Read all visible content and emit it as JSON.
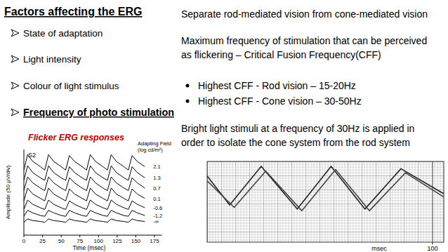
{
  "slide": {
    "title": "Factors affecting the ERG",
    "factors": [
      "State of adaptation",
      "Light intensity",
      "Colour of light stimulus"
    ],
    "current_factor": "Frequency of photo stimulation",
    "right_text": {
      "intro": [
        "Separate rod-mediated vision from cone-mediated vision"
      ],
      "cff": [
        "Maximum frequency of stimulation that can be perceived",
        "as flickering – Critical Fusion Frequency(CFF)"
      ],
      "cff_list": [
        "Highest CFF - Rod vision – 15-20Hz",
        "Highest CFF - Cone vision – 30-50Hz"
      ],
      "conclusion": [
        "Bright light stimuli at a frequency of 30Hz is applied in",
        "order to isolate the cone system from the rod system"
      ]
    }
  },
  "chart_data": [
    {
      "type": "line",
      "title": "Flicker ERG responses",
      "y_label": "Amplitude (50 µV/div)",
      "x_label": "Time (msec)",
      "annotations": [
        "S2"
      ],
      "legend_title": [
        "Adapting Field",
        "(log cd/m²)"
      ],
      "x": [
        0,
        5,
        12,
        22,
        28,
        33,
        40,
        50,
        56,
        61,
        68,
        78,
        84,
        89,
        96,
        106,
        112,
        117,
        124,
        134,
        140,
        145,
        152,
        162
      ],
      "series": [
        {
          "name": "2.1",
          "color": "#000000",
          "values": [
            7.6,
            9.4,
            8.6,
            8.0,
            7.6,
            9.4,
            8.6,
            8.0,
            7.6,
            9.3,
            8.6,
            8.0,
            7.6,
            9.4,
            8.6,
            8.0,
            7.6,
            9.4,
            8.6,
            8.0,
            7.6,
            9.3,
            8.6,
            8.0
          ]
        },
        {
          "name": "1.3",
          "color": "#000000",
          "values": [
            6.4,
            8.1,
            7.3,
            6.7,
            6.4,
            8.1,
            7.3,
            6.7,
            6.4,
            8.0,
            7.3,
            6.7,
            6.4,
            8.1,
            7.3,
            6.7,
            6.4,
            8.1,
            7.3,
            6.7,
            6.4,
            8.0,
            7.3,
            6.7
          ]
        },
        {
          "name": "0.7",
          "color": "#000000",
          "values": [
            5.2,
            6.8,
            6.1,
            5.5,
            5.2,
            6.8,
            6.1,
            5.5,
            5.2,
            6.7,
            6.1,
            5.5,
            5.2,
            6.8,
            6.1,
            5.5,
            5.2,
            6.8,
            6.1,
            5.5,
            5.2,
            6.7,
            6.1,
            5.5
          ]
        },
        {
          "name": "0.1",
          "color": "#000000",
          "values": [
            4.0,
            5.5,
            4.8,
            4.3,
            4.0,
            5.5,
            4.8,
            4.3,
            4.0,
            5.4,
            4.8,
            4.3,
            4.0,
            5.5,
            4.8,
            4.3,
            4.0,
            5.5,
            4.8,
            4.3,
            4.0,
            5.4,
            4.8,
            4.3
          ]
        },
        {
          "name": "-0.6",
          "color": "#000000",
          "values": [
            3.0,
            4.1,
            3.6,
            3.2,
            3.0,
            4.1,
            3.6,
            3.2,
            3.0,
            4.0,
            3.6,
            3.2,
            3.0,
            4.1,
            3.6,
            3.2,
            3.0,
            4.1,
            3.6,
            3.2,
            3.0,
            4.0,
            3.6,
            3.2
          ]
        },
        {
          "name": "-1.2",
          "color": "#000000",
          "values": [
            2.2,
            2.9,
            2.6,
            2.3,
            2.2,
            2.9,
            2.6,
            2.3,
            2.2,
            2.9,
            2.6,
            2.3,
            2.2,
            2.9,
            2.6,
            2.3,
            2.2,
            2.9,
            2.6,
            2.3,
            2.2,
            2.9,
            2.6,
            2.3
          ]
        },
        {
          "name": "-∞",
          "color": "#000000",
          "values": [
            1.5,
            1.9,
            1.7,
            1.6,
            1.5,
            1.9,
            1.7,
            1.6,
            1.5,
            1.9,
            1.7,
            1.6,
            1.5,
            1.9,
            1.7,
            1.6,
            1.5,
            1.9,
            1.7,
            1.6,
            1.5,
            1.9,
            1.7,
            1.6
          ]
        }
      ],
      "xlim": [
        0,
        185
      ],
      "xticks": [
        0,
        25,
        50,
        75,
        100,
        125,
        150,
        175
      ],
      "ylim": [
        0,
        10
      ],
      "tick_labels": "x",
      "grid": false
    },
    {
      "type": "line",
      "x_label": "msec",
      "series": [
        {
          "color": "#222222",
          "x": [
            0,
            10,
            24,
            40,
            55,
            70,
            86,
            105
          ],
          "values": [
            8.2,
            4.6,
            9.4,
            4.1,
            9.4,
            4.1,
            9.1,
            6.0
          ]
        },
        {
          "color": "#444444",
          "x": [
            0,
            12,
            26,
            42,
            57,
            72,
            88,
            105
          ],
          "values": [
            7.6,
            4.3,
            8.8,
            3.9,
            9.0,
            3.9,
            8.6,
            5.6
          ]
        }
      ],
      "xlim": [
        0,
        105
      ],
      "xticks": [
        100
      ],
      "ylim": [
        0,
        10
      ],
      "tick_labels": "x",
      "grid": true
    }
  ]
}
